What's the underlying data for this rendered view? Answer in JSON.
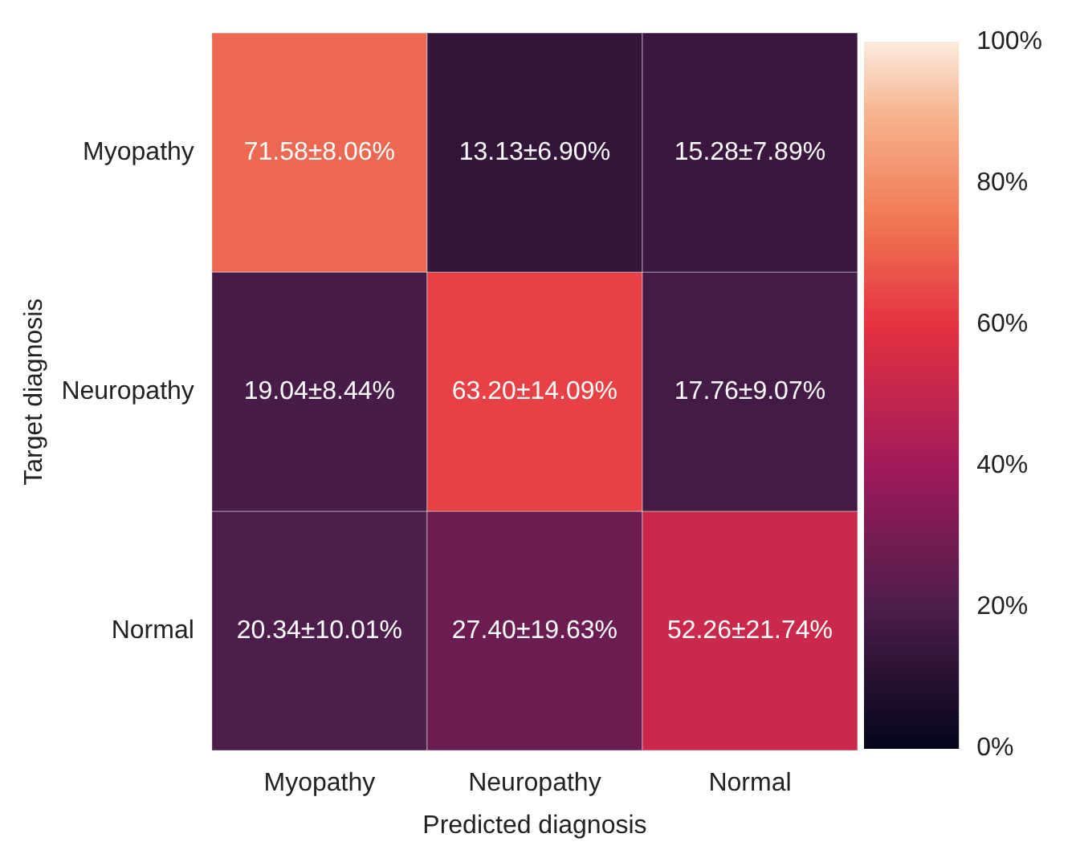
{
  "chart_data": {
    "type": "heatmap",
    "xlabel": "Predicted diagnosis",
    "ylabel": "Target diagnosis",
    "categories": [
      "Myopathy",
      "Neuropathy",
      "Normal"
    ],
    "y_categories": [
      "Myopathy",
      "Neuropathy",
      "Normal"
    ],
    "cells": [
      [
        71.58,
        13.13,
        15.28
      ],
      [
        19.04,
        63.2,
        17.76
      ],
      [
        20.34,
        27.4,
        52.26
      ]
    ],
    "cell_labels": [
      [
        "71.58±8.06%",
        "13.13±6.90%",
        "15.28±7.89%"
      ],
      [
        "19.04±8.44%",
        "63.20±14.09%",
        "17.76±9.07%"
      ],
      [
        "20.34±10.01%",
        "27.40±19.63%",
        "52.26±21.74%"
      ]
    ],
    "clim": [
      0,
      100
    ],
    "cticks": [
      {
        "value": 0,
        "label": "0%"
      },
      {
        "value": 20,
        "label": "20%"
      },
      {
        "value": 40,
        "label": "40%"
      },
      {
        "value": 60,
        "label": "60%"
      },
      {
        "value": 80,
        "label": "80%"
      },
      {
        "value": 100,
        "label": "100%"
      }
    ]
  }
}
